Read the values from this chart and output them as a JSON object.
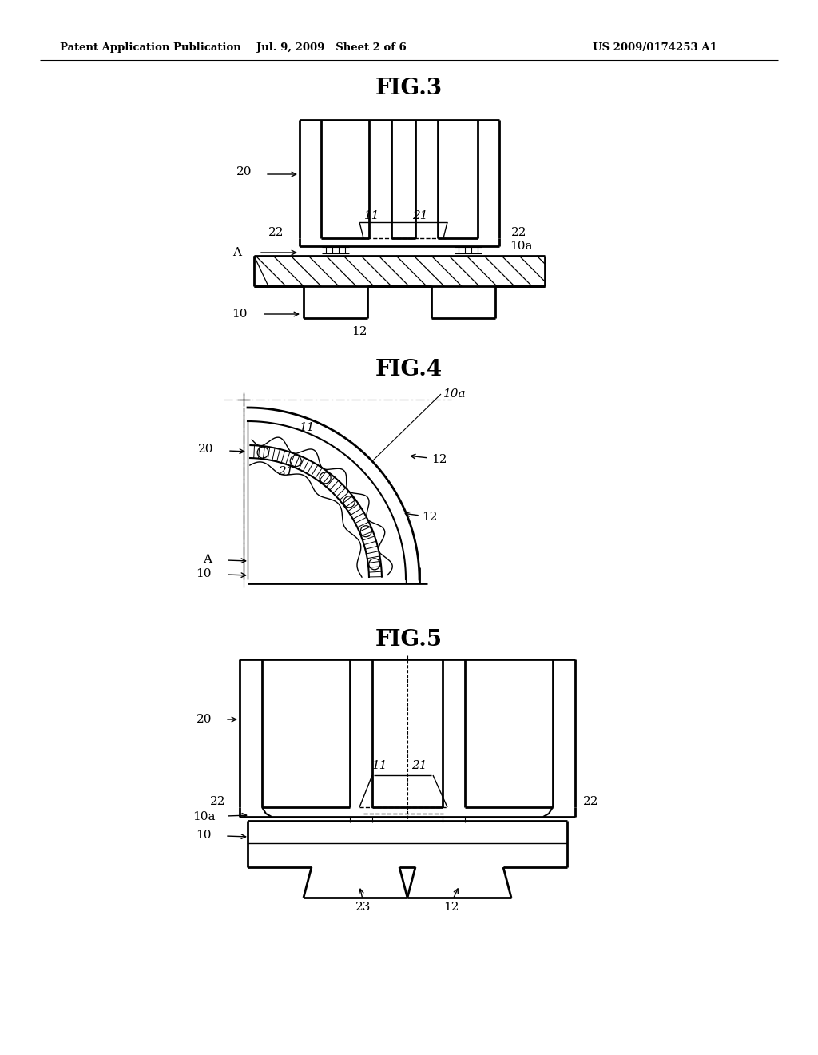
{
  "header_left": "Patent Application Publication",
  "header_mid": "Jul. 9, 2009   Sheet 2 of 6",
  "header_right": "US 2009/0174253 A1",
  "fig3_title": "FIG.3",
  "fig4_title": "FIG.4",
  "fig5_title": "FIG.5",
  "bg_color": "#ffffff",
  "line_color": "#000000"
}
